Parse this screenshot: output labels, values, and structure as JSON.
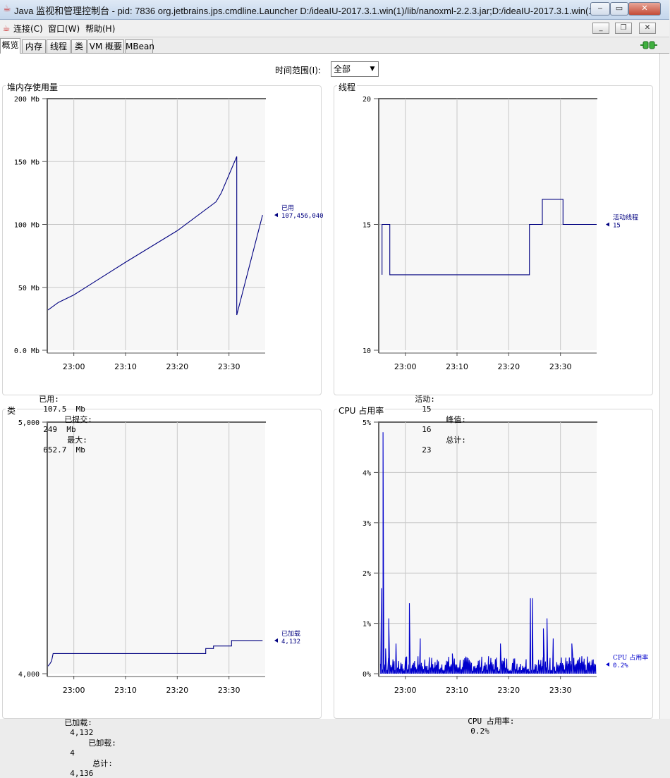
{
  "window": {
    "title": "Java 监视和管理控制台 - pid: 7836 org.jetbrains.jps.cmdline.Launcher D:/ideaIU-2017.3.1.win(1)/lib/nanoxml-2.2.3.jar;D:/ideaIU-2017.3.1.win(1...",
    "minimize": "‒",
    "restore": "▭",
    "close": "✕"
  },
  "menu": {
    "items": [
      "连接(C)",
      "窗口(W)",
      "帮助(H)"
    ],
    "inner_minimize": "_",
    "inner_restore": "❐",
    "inner_close": "✕"
  },
  "tabs": [
    "概览",
    "内存",
    "线程",
    "类",
    "VM 概要",
    "MBean"
  ],
  "time_range": {
    "label": "时间范围(I):",
    "value": "全部"
  },
  "panels": {
    "heap": {
      "title": "堆内存使用量",
      "stats": [
        {
          "label": "已用:",
          "value": "107.5  Mb"
        },
        {
          "label": "已提交:",
          "value": "249  Mb"
        },
        {
          "label": "最大:",
          "value": "652.7  Mb"
        }
      ]
    },
    "threads": {
      "title": "线程",
      "stats": [
        {
          "label": "活动:",
          "value": "15"
        },
        {
          "label": "峰值:",
          "value": "16"
        },
        {
          "label": "总计:",
          "value": "23"
        }
      ]
    },
    "classes": {
      "title": "类",
      "stats": [
        {
          "label": "已加载:",
          "value": "4,132"
        },
        {
          "label": "已卸载:",
          "value": "4"
        },
        {
          "label": "总计:",
          "value": "4,136"
        }
      ]
    },
    "cpu": {
      "title": "CPU 占用率",
      "stats": [
        {
          "label": "CPU 占用率:",
          "value": "0.2%"
        }
      ]
    }
  },
  "chart_data": [
    {
      "id": "heap",
      "type": "line",
      "title": "堆内存使用量",
      "x_ticks": [
        "23:00",
        "23:10",
        "23:20",
        "23:30"
      ],
      "x_tick_minutes": [
        0,
        10,
        20,
        30
      ],
      "xlim_minutes": [
        -5,
        37
      ],
      "y_ticks": [
        "0.0 Mb",
        "50 Mb",
        "100 Mb",
        "150 Mb",
        "200 Mb"
      ],
      "ylim": [
        0,
        200
      ],
      "color": "#000080",
      "series": [
        {
          "name": "已用",
          "current": "107,456,040",
          "x": [
            -5,
            -3,
            0,
            10,
            20,
            27.5,
            28.5,
            31.5,
            31.5,
            36.5
          ],
          "y": [
            32,
            38,
            44,
            70,
            95,
            118,
            125,
            154,
            28,
            107.5
          ]
        }
      ]
    },
    {
      "id": "threads",
      "type": "line",
      "title": "线程",
      "x_ticks": [
        "23:00",
        "23:10",
        "23:20",
        "23:30"
      ],
      "x_tick_minutes": [
        0,
        10,
        20,
        30
      ],
      "xlim_minutes": [
        -5,
        37
      ],
      "y_ticks": [
        "10",
        "15",
        "20"
      ],
      "ylim": [
        10,
        20
      ],
      "color": "#000080",
      "series": [
        {
          "name": "活动线程",
          "current": "15",
          "x": [
            -4.5,
            -4.5,
            -3,
            -3,
            24,
            24,
            26.5,
            26.5,
            30.5,
            30.5,
            37
          ],
          "y": [
            13,
            15,
            15,
            13,
            13,
            15,
            15,
            16,
            16,
            15,
            15
          ]
        }
      ]
    },
    {
      "id": "classes",
      "type": "line",
      "title": "类",
      "x_ticks": [
        "23:00",
        "23:10",
        "23:20",
        "23:30"
      ],
      "x_tick_minutes": [
        0,
        10,
        20,
        30
      ],
      "xlim_minutes": [
        -5,
        37
      ],
      "y_ticks": [
        "4,000",
        "5,000"
      ],
      "ylim": [
        4000,
        5000
      ],
      "color": "#000080",
      "series": [
        {
          "name": "已加载",
          "current": "4,132",
          "x": [
            -5,
            -4.6,
            -4.3,
            -4,
            25.5,
            25.5,
            27,
            27,
            30.5,
            30.5,
            36.5
          ],
          "y": [
            4030,
            4040,
            4050,
            4080,
            4080,
            4100,
            4100,
            4110,
            4110,
            4132,
            4132
          ]
        }
      ]
    },
    {
      "id": "cpu",
      "type": "line",
      "title": "CPU 占用率",
      "x_ticks": [
        "23:00",
        "23:10",
        "23:20",
        "23:30"
      ],
      "x_tick_minutes": [
        0,
        10,
        20,
        30
      ],
      "xlim_minutes": [
        -5,
        37
      ],
      "y_ticks": [
        "0%",
        "1%",
        "2%",
        "3%",
        "4%",
        "5%"
      ],
      "ylim": [
        0,
        5
      ],
      "color": "#0000cc",
      "series": [
        {
          "name": "CPU 占用率",
          "current": "0.2%",
          "spikes": [
            {
              "x": -4.6,
              "y": 1.7
            },
            {
              "x": -4.3,
              "y": 4.8
            },
            {
              "x": -3.8,
              "y": 0.5
            },
            {
              "x": -3.2,
              "y": 1.1
            },
            {
              "x": -1.8,
              "y": 0.6
            },
            {
              "x": 0.8,
              "y": 1.4
            },
            {
              "x": 2.9,
              "y": 0.7
            },
            {
              "x": 9.1,
              "y": 0.4
            },
            {
              "x": 18.4,
              "y": 0.6
            },
            {
              "x": 24.2,
              "y": 1.5
            },
            {
              "x": 24.6,
              "y": 1.5
            },
            {
              "x": 26.7,
              "y": 0.9
            },
            {
              "x": 27.4,
              "y": 1.1
            },
            {
              "x": 28.6,
              "y": 0.7
            },
            {
              "x": 32.2,
              "y": 0.6
            }
          ],
          "baseline": [
            0.05,
            0.35
          ]
        }
      ]
    }
  ]
}
